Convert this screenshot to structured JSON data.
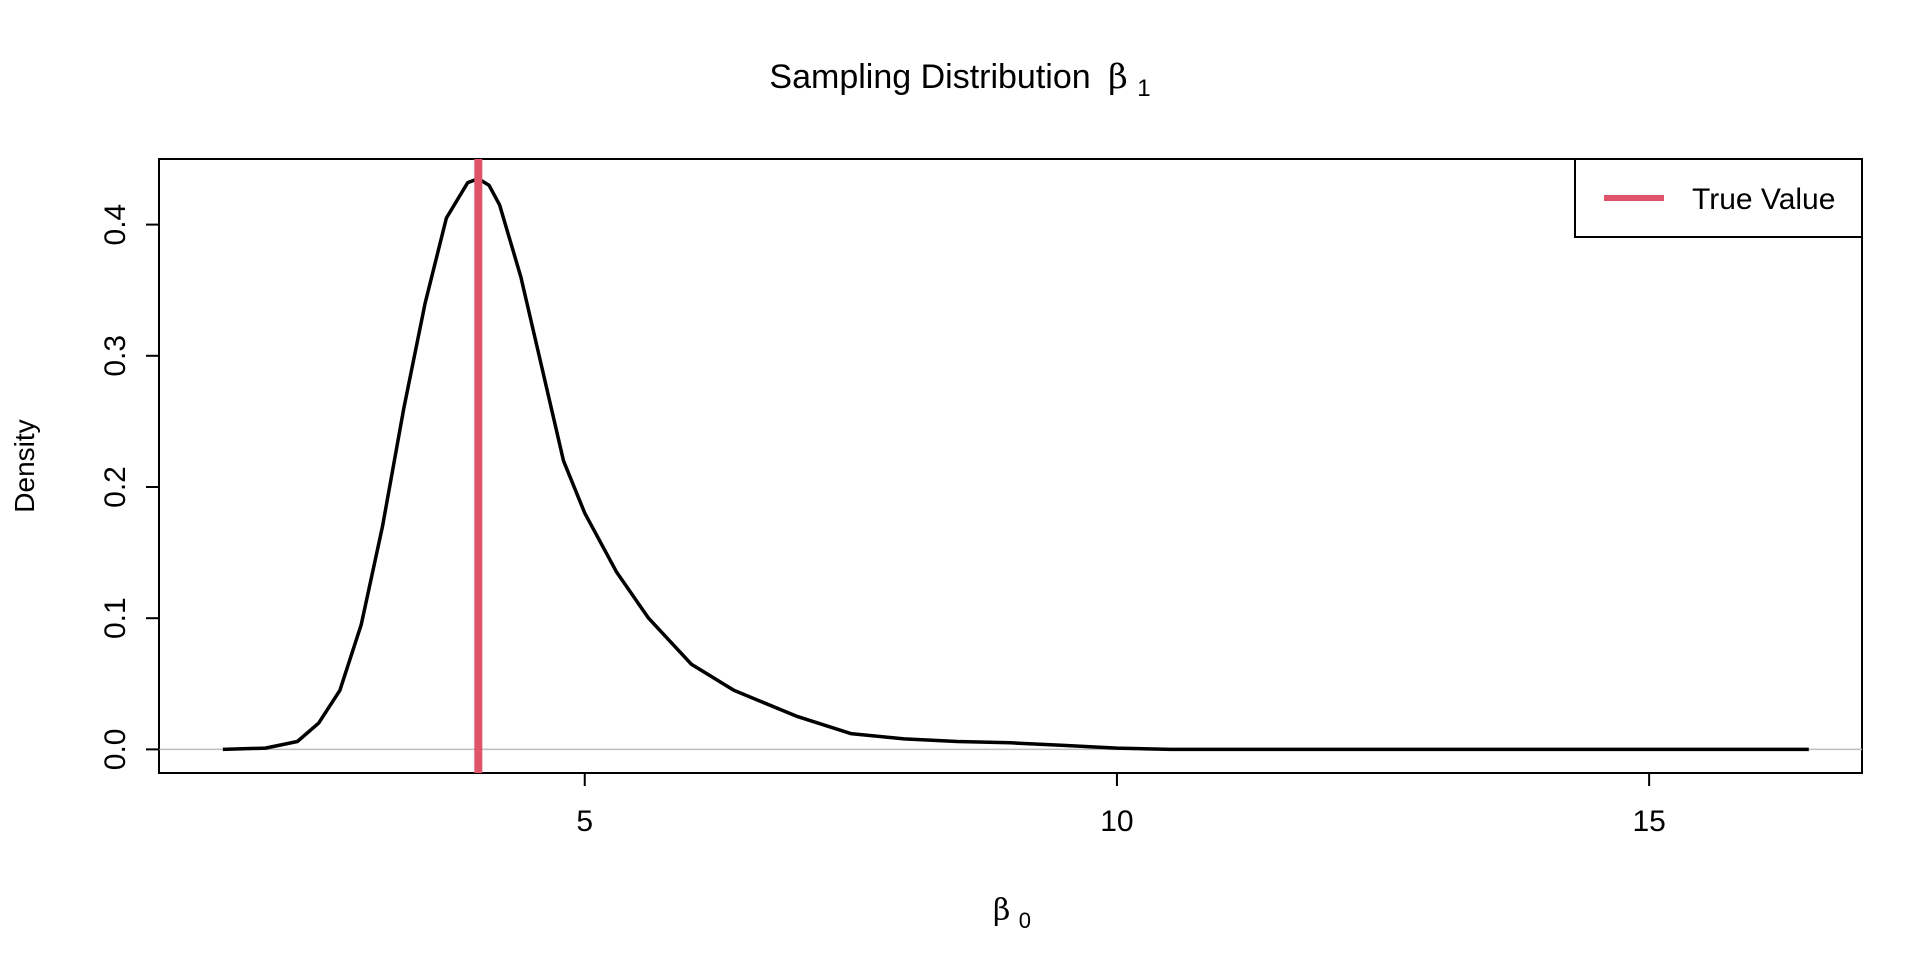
{
  "chart_data": {
    "type": "line",
    "title": "Sampling Distribution",
    "title_symbol": "β",
    "title_subscript": "1",
    "xlabel_symbol": "β",
    "xlabel_subscript": "0",
    "ylabel": "Density",
    "xlim": [
      1.0,
      17.0
    ],
    "ylim": [
      -0.018,
      0.45
    ],
    "x_ticks": [
      5,
      10,
      15
    ],
    "x_tick_labels": [
      "5",
      "10",
      "15"
    ],
    "y_ticks": [
      0.0,
      0.1,
      0.2,
      0.3,
      0.4
    ],
    "y_tick_labels": [
      "0.0",
      "0.1",
      "0.2",
      "0.3",
      "0.4"
    ],
    "grid": false,
    "baseline": 0,
    "series": [
      {
        "color": "#000000",
        "x": [
          1.6,
          2.0,
          2.3,
          2.5,
          2.7,
          2.9,
          3.1,
          3.3,
          3.5,
          3.7,
          3.9,
          4.0,
          4.1,
          4.2,
          4.4,
          4.6,
          4.8,
          5.0,
          5.3,
          5.6,
          6.0,
          6.4,
          7.0,
          7.5,
          8.0,
          8.5,
          9.0,
          9.5,
          10.0,
          10.5,
          11.0,
          12.0,
          13.0,
          14.0,
          15.0,
          16.0,
          16.5
        ],
        "y": [
          0.0,
          0.001,
          0.006,
          0.02,
          0.045,
          0.095,
          0.17,
          0.26,
          0.34,
          0.405,
          0.432,
          0.435,
          0.43,
          0.415,
          0.36,
          0.29,
          0.22,
          0.18,
          0.135,
          0.1,
          0.065,
          0.045,
          0.025,
          0.012,
          0.008,
          0.006,
          0.005,
          0.003,
          0.001,
          0.0,
          0.0,
          0.0,
          0.0,
          0.0,
          0.0,
          0.0,
          0.0
        ]
      }
    ],
    "reference_lines": [
      {
        "orientation": "vertical",
        "x": 4.0,
        "color": "#DF536B",
        "legend_label": "True Value"
      }
    ],
    "legend": {
      "position": "top-right",
      "entries": [
        "True Value"
      ]
    }
  }
}
